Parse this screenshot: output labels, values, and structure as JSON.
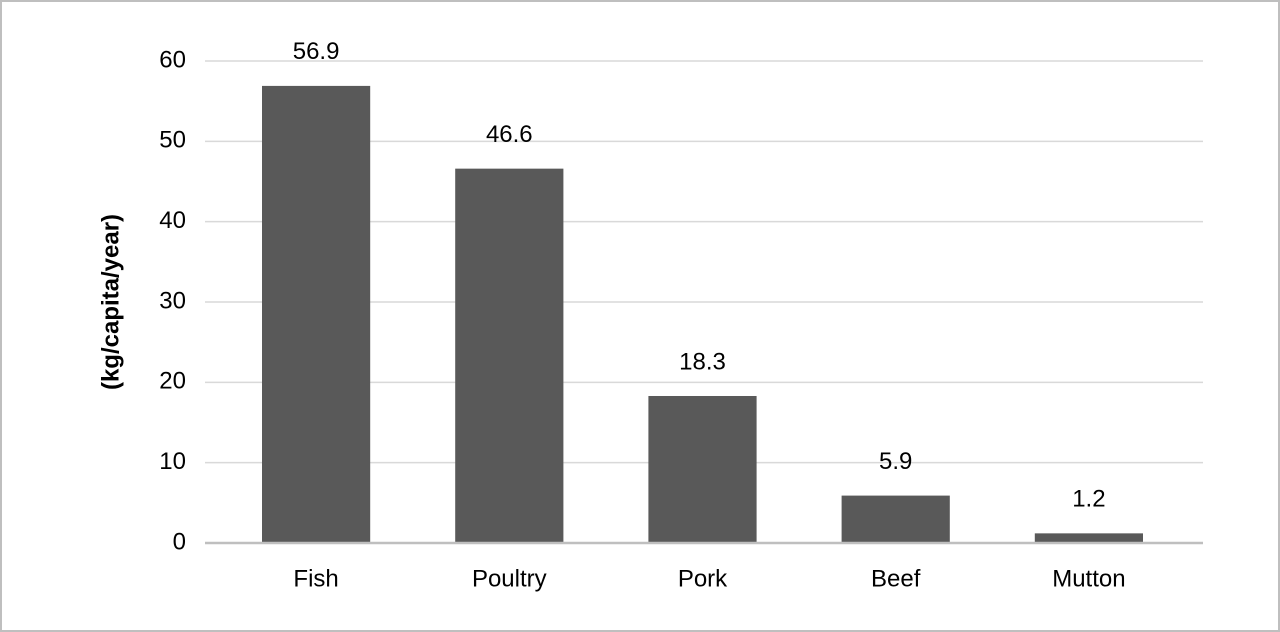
{
  "chart_data": {
    "type": "bar",
    "y_label": "(kg/capita/year)",
    "categories": [
      "Fish",
      "Poultry",
      "Pork",
      "Beef",
      "Mutton"
    ],
    "values": [
      56.9,
      46.6,
      18.3,
      5.9,
      1.2
    ],
    "color": "#595959",
    "ylim": [
      0,
      60
    ],
    "yticks": [
      0,
      10,
      20,
      30,
      40,
      50,
      60
    ],
    "grid": true
  }
}
